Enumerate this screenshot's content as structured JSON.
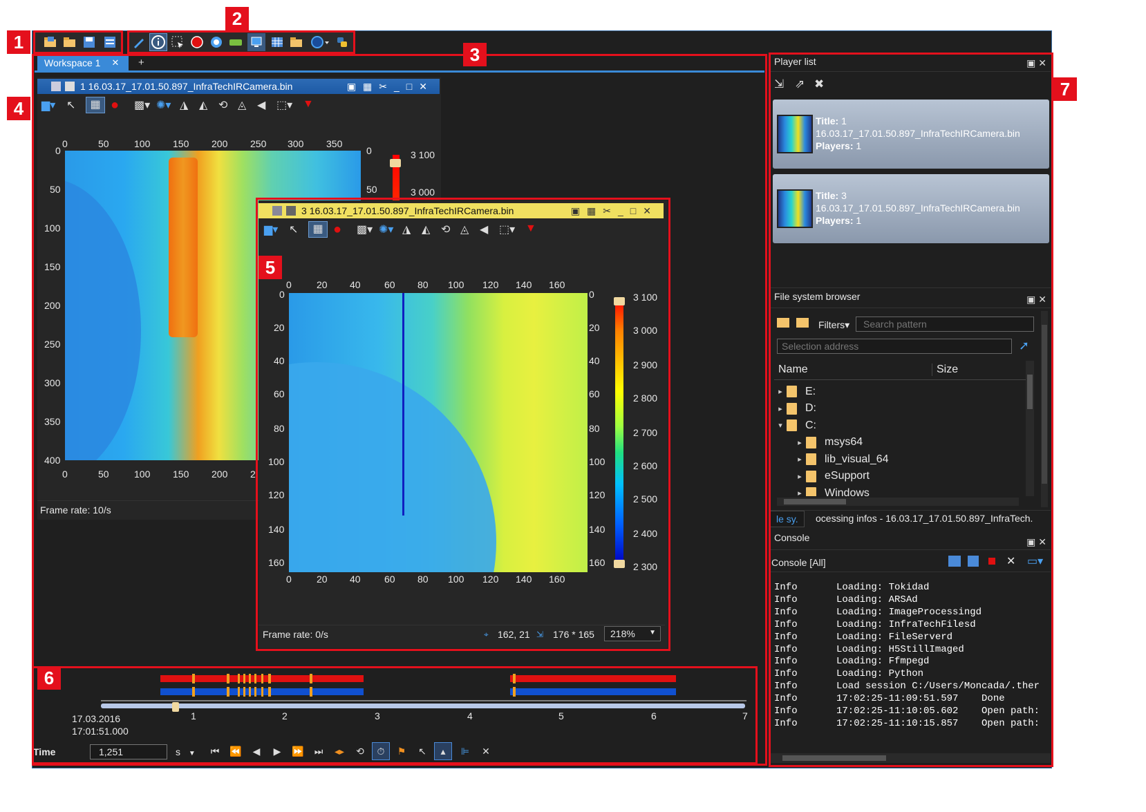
{
  "callouts": [
    "1",
    "2",
    "3",
    "4",
    "5",
    "6",
    "7"
  ],
  "workspace": {
    "tab_label": "Workspace 1",
    "tab_close": "✕",
    "add_tab": "+"
  },
  "colorbar": {
    "labels": [
      "3 100",
      "3 000",
      "2 900",
      "2 800",
      "2 700",
      "2 600",
      "2 500",
      "2 400",
      "2 300"
    ],
    "colors": [
      "#ff0000",
      "#ff8000",
      "#ffff00",
      "#a0ff40",
      "#20e080",
      "#00c0ff",
      "#0060ff",
      "#0000c0"
    ]
  },
  "player1": {
    "title": "1 16.03.17_17.01.50.897_InfraTechIRCamera.bin",
    "x_ticks": [
      "0",
      "50",
      "100",
      "150",
      "200",
      "250",
      "300",
      "350"
    ],
    "x_ticks_bottom": [
      "0",
      "50",
      "100",
      "150",
      "200",
      "2"
    ],
    "y_ticks": [
      "0",
      "50",
      "100",
      "150",
      "200",
      "250",
      "300",
      "350",
      "400"
    ],
    "y_ticks_right": [
      "0",
      "50"
    ],
    "cb_labels": [
      "3 100",
      "3 000"
    ],
    "frame_rate": "Frame rate: 10/s"
  },
  "player3": {
    "title": "3 16.03.17_17.01.50.897_InfraTechIRCamera.bin",
    "x_ticks": [
      "0",
      "20",
      "40",
      "60",
      "80",
      "100",
      "120",
      "140",
      "160"
    ],
    "y_ticks": [
      "0",
      "20",
      "40",
      "60",
      "80",
      "100",
      "120",
      "140",
      "160"
    ],
    "frame_rate": "Frame rate: 0/s",
    "cursor_pos": "162, 21",
    "roi_size": "176 * 165",
    "zoom": "218%"
  },
  "timeline": {
    "date": "17.03.2016",
    "time": "17:01:51.000",
    "ticks": [
      "1",
      "2",
      "3",
      "4",
      "5",
      "6",
      "7"
    ],
    "time_label": "Time",
    "time_value": "1,251",
    "unit": "s",
    "progress": 0.11
  },
  "player_list": {
    "title": "Player list",
    "cards": [
      {
        "title_key": "Title:",
        "title_val": "1",
        "file": "16.03.17_17.01.50.897_InfraTechIRCamera.bin",
        "players_key": "Players:",
        "players_val": "1"
      },
      {
        "title_key": "Title:",
        "title_val": "3",
        "file": "16.03.17_17.01.50.897_InfraTechIRCamera.bin",
        "players_key": "Players:",
        "players_val": "1"
      }
    ]
  },
  "file_browser": {
    "title": "File system browser",
    "filters": "Filters",
    "search_placeholder": "Search pattern",
    "address_placeholder": "Selection address",
    "col_name": "Name",
    "col_size": "Size",
    "items": [
      {
        "label": "E:",
        "indent": 0,
        "arrow": "▸"
      },
      {
        "label": "D:",
        "indent": 0,
        "arrow": "▸"
      },
      {
        "label": "C:",
        "indent": 0,
        "arrow": "▾"
      },
      {
        "label": "msys64",
        "indent": 1,
        "arrow": "▸"
      },
      {
        "label": "lib_visual_64",
        "indent": 1,
        "arrow": "▸"
      },
      {
        "label": "eSupport",
        "indent": 1,
        "arrow": "▸"
      },
      {
        "label": "Windows",
        "indent": 1,
        "arrow": "▸"
      }
    ],
    "tab1": "le sy.",
    "tab2": "ocessing infos - 16.03.17_17.01.50.897_InfraTech."
  },
  "console": {
    "title": "Console",
    "filter_label": "Console [All]",
    "rows": [
      {
        "level": "Info",
        "msg": "Loading: Tokidad"
      },
      {
        "level": "Info",
        "msg": "Loading: ARSAd"
      },
      {
        "level": "Info",
        "msg": "Loading: ImageProcessingd"
      },
      {
        "level": "Info",
        "msg": "Loading: InfraTechFilesd"
      },
      {
        "level": "Info",
        "msg": "Loading: FileServerd"
      },
      {
        "level": "Info",
        "msg": "Loading: H5StillImaged"
      },
      {
        "level": "Info",
        "msg": "Loading: Ffmpegd"
      },
      {
        "level": "Info",
        "msg": "Loading: Python"
      },
      {
        "level": "Info",
        "msg": "Load session C:/Users/Moncada/.ther"
      },
      {
        "level": "Info",
        "msg": "17:02:25-11:09:51.597    Done"
      },
      {
        "level": "Info",
        "msg": "17:02:25-11:10:05.602    Open path:"
      },
      {
        "level": "Info",
        "msg": "17:02:25-11:10:15.857    Open path:"
      }
    ]
  }
}
